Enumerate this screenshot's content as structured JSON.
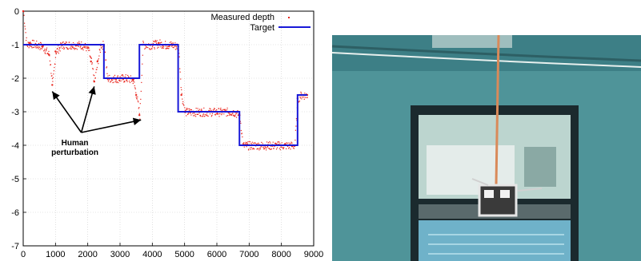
{
  "chart_data": {
    "type": "line",
    "xlim": [
      0,
      9000
    ],
    "ylim": [
      -7,
      0
    ],
    "xticks": [
      "0",
      "1000",
      "2000",
      "3000",
      "4000",
      "5000",
      "6000",
      "7000",
      "8000",
      "9000"
    ],
    "yticks": [
      "0",
      "-1",
      "-2",
      "-3",
      "-4",
      "-5",
      "-6",
      "-7"
    ],
    "grid": true,
    "legend_position": "top-right",
    "series": [
      {
        "name": "Measured depth",
        "style": "scatter",
        "color": "#e8241c",
        "x": [
          0,
          100,
          200,
          400,
          600,
          800,
          900,
          1000,
          1200,
          1500,
          1800,
          2000,
          2100,
          2200,
          2300,
          2400,
          2500,
          2600,
          2800,
          3000,
          3200,
          3400,
          3500,
          3600,
          3700,
          3800,
          4000,
          4200,
          4400,
          4600,
          4800,
          4900,
          5000,
          5200,
          5500,
          6000,
          6500,
          6700,
          6800,
          7000,
          7500,
          8000,
          8400,
          8500,
          8600,
          8800
        ],
        "y": [
          0,
          -1.0,
          -0.95,
          -1.0,
          -1.05,
          -1.3,
          -2.2,
          -1.2,
          -1.0,
          -1.0,
          -1.0,
          -1.1,
          -1.5,
          -2.1,
          -1.5,
          -1.0,
          -1.0,
          -2.0,
          -2.0,
          -2.0,
          -2.0,
          -2.05,
          -2.5,
          -3.1,
          -1.0,
          -1.0,
          -1.0,
          -0.95,
          -1.0,
          -1.0,
          -1.05,
          -2.5,
          -3.0,
          -3.0,
          -3.0,
          -3.0,
          -3.0,
          -3.1,
          -4.0,
          -4.0,
          -4.0,
          -4.0,
          -4.0,
          -2.6,
          -2.5,
          -2.5
        ]
      },
      {
        "name": "Target",
        "style": "step",
        "color": "#1818d8",
        "x": [
          0,
          2500,
          2500,
          3600,
          3600,
          4800,
          4800,
          6700,
          6700,
          8500,
          8500,
          8800
        ],
        "y": [
          -1,
          -1,
          -2,
          -2,
          -1,
          -1,
          -3,
          -3,
          -4,
          -4,
          -2.5,
          -2.5
        ]
      }
    ],
    "annotation": {
      "text_line1": "Human",
      "text_line2": "perturbation",
      "arrow_targets": [
        {
          "x": 900,
          "y": -2.3
        },
        {
          "x": 2200,
          "y": -2.15
        },
        {
          "x": 3650,
          "y": -3.15
        }
      ],
      "anchor": {
        "x": 1800,
        "y": -4.0
      }
    }
  },
  "photo": {
    "colors": {
      "water": "#4a8f93",
      "water_dark": "#2f6f74",
      "frame": "#1e2c30",
      "window_glass": "#b8d4cc",
      "tether": "#d98a5a",
      "robot": "#dcdcdc"
    }
  }
}
